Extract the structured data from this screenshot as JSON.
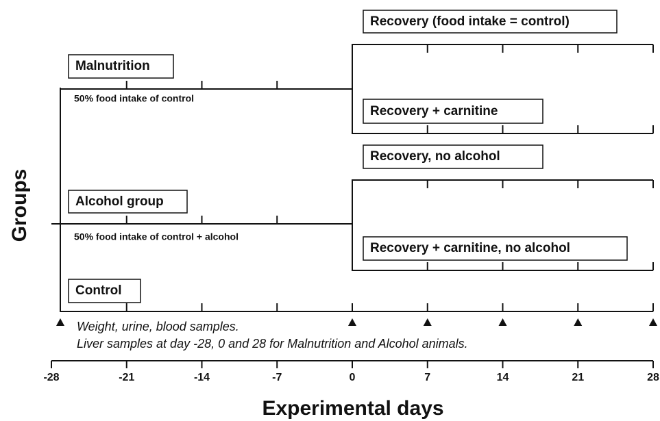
{
  "groups_label": "Groups",
  "malnutrition": {
    "name": "Malnutrition",
    "note": "50% food intake of control",
    "recovery": [
      "Recovery (food intake = control)",
      "Recovery + carnitine"
    ]
  },
  "alcohol": {
    "name": "Alcohol group",
    "note": "50% food intake of control + alcohol",
    "recovery": [
      "Recovery, no alcohol",
      "Recovery + carnitine, no alcohol"
    ]
  },
  "control": {
    "name": "Control"
  },
  "samples": [
    "Weight, urine, blood samples.",
    "Liver samples at day -28, 0 and 28 for Malnutrition and Alcohol animals."
  ],
  "axis": {
    "title": "Experimental days",
    "ticks": [
      -28,
      -21,
      -14,
      -7,
      0,
      7,
      14,
      21,
      28
    ]
  }
}
